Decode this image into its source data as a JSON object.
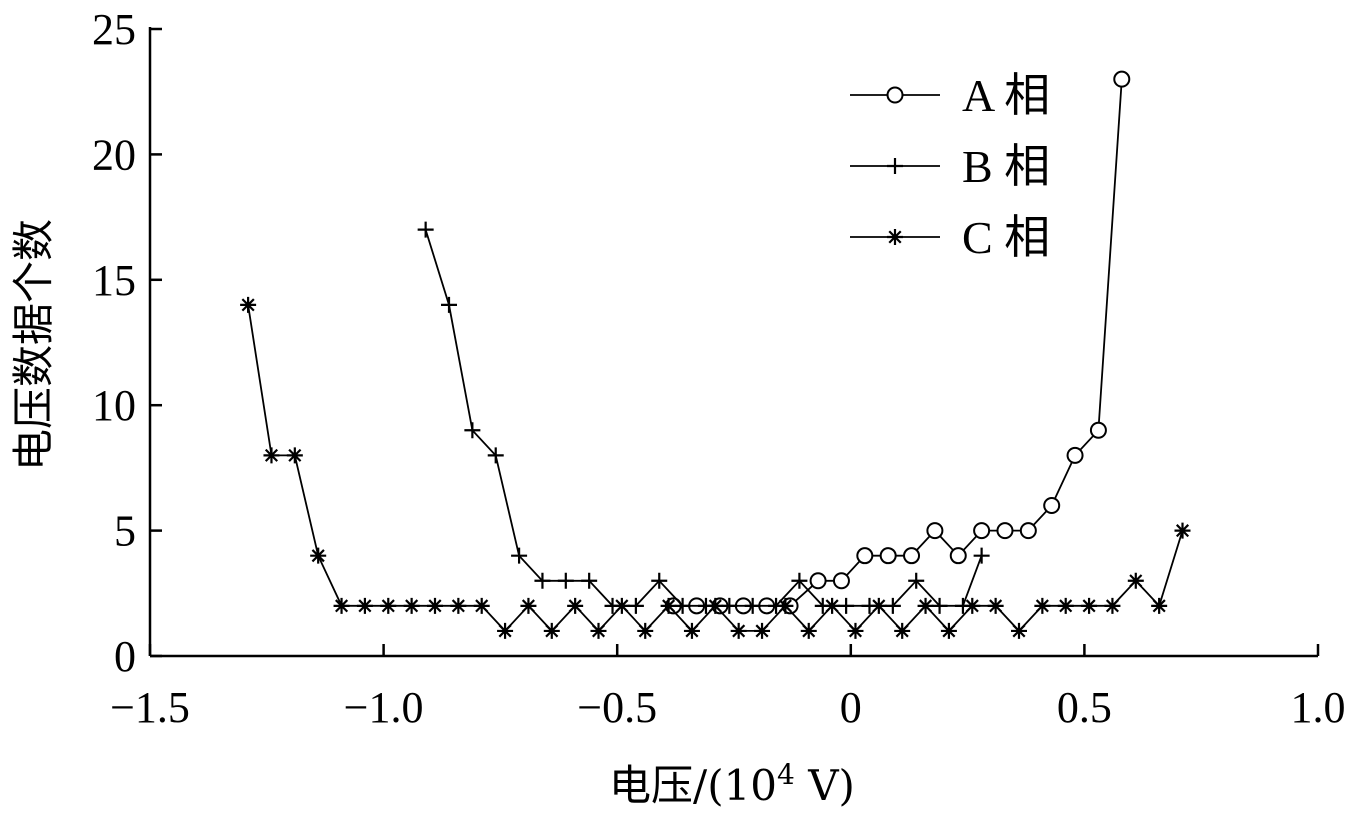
{
  "chart_data": {
    "type": "line",
    "title": "",
    "xlabel": "电压/(10⁴ V)",
    "xlabel_parts": {
      "prefix": "电压/(10",
      "sup": "4",
      "suffix": " V)"
    },
    "ylabel": "电压数据个数",
    "xlim": [
      -1.5,
      1.0
    ],
    "ylim": [
      0,
      25
    ],
    "x_ticks": [
      -1.5,
      -1.0,
      -0.5,
      0,
      0.5,
      1.0
    ],
    "x_tick_labels": [
      "−1.5",
      "−1.0",
      "−0.5",
      "0",
      "0.5",
      "1.0"
    ],
    "y_ticks": [
      0,
      5,
      10,
      15,
      20,
      25
    ],
    "y_tick_labels": [
      "0",
      "5",
      "10",
      "15",
      "20",
      "25"
    ],
    "grid": false,
    "legend_position": "top-right",
    "series": [
      {
        "name": "A 相",
        "marker": "circle",
        "x": [
          -0.38,
          -0.33,
          -0.28,
          -0.23,
          -0.18,
          -0.13,
          -0.07,
          -0.02,
          0.03,
          0.08,
          0.13,
          0.18,
          0.23,
          0.28,
          0.33,
          0.38,
          0.43,
          0.48,
          0.53,
          0.58
        ],
        "y": [
          2,
          2,
          2,
          2,
          2,
          2,
          3,
          3,
          4,
          4,
          4,
          5,
          4,
          5,
          5,
          5,
          6,
          8,
          9,
          23
        ]
      },
      {
        "name": "B 相",
        "marker": "plus",
        "x": [
          -0.91,
          -0.86,
          -0.81,
          -0.76,
          -0.71,
          -0.66,
          -0.61,
          -0.56,
          -0.51,
          -0.46,
          -0.41,
          -0.36,
          -0.31,
          -0.26,
          -0.21,
          -0.16,
          -0.11,
          -0.06,
          -0.01,
          0.04,
          0.09,
          0.14,
          0.19,
          0.24,
          0.28
        ],
        "y": [
          17,
          14,
          9,
          8,
          4,
          3,
          3,
          3,
          2,
          2,
          3,
          2,
          2,
          2,
          2,
          2,
          3,
          2,
          2,
          2,
          2,
          3,
          2,
          2,
          4
        ]
      },
      {
        "name": "C 相",
        "marker": "asterisk",
        "x": [
          -1.29,
          -1.24,
          -1.19,
          -1.14,
          -1.09,
          -1.04,
          -0.99,
          -0.94,
          -0.89,
          -0.84,
          -0.79,
          -0.74,
          -0.69,
          -0.64,
          -0.59,
          -0.54,
          -0.49,
          -0.44,
          -0.39,
          -0.34,
          -0.29,
          -0.24,
          -0.19,
          -0.14,
          -0.09,
          -0.04,
          0.01,
          0.06,
          0.11,
          0.16,
          0.21,
          0.26,
          0.31,
          0.36,
          0.41,
          0.46,
          0.51,
          0.56,
          0.61,
          0.66,
          0.71
        ],
        "y": [
          14,
          8,
          8,
          4,
          2,
          2,
          2,
          2,
          2,
          2,
          2,
          1,
          2,
          1,
          2,
          1,
          2,
          1,
          2,
          1,
          2,
          1,
          1,
          2,
          1,
          2,
          1,
          2,
          1,
          2,
          1,
          2,
          2,
          1,
          2,
          2,
          2,
          2,
          3,
          2,
          5
        ]
      }
    ]
  }
}
